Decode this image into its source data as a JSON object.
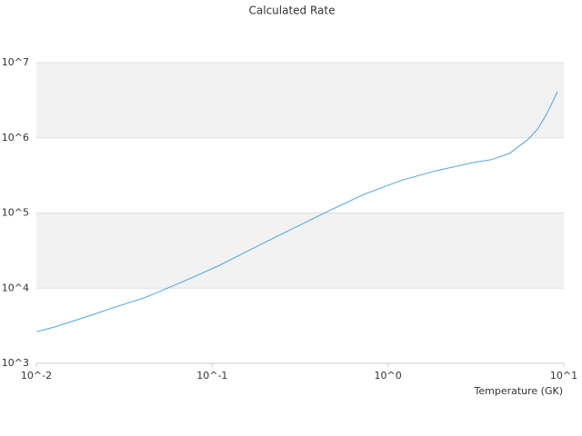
{
  "chart_data": {
    "type": "line",
    "title": "Calculated Rate",
    "x_label": "Temperature (GK)",
    "x": [
      0.01,
      0.0127,
      0.0204,
      0.026,
      0.042,
      0.0675,
      0.109,
      0.175,
      0.282,
      0.455,
      0.733,
      1.18,
      1.9,
      3.07,
      3.9,
      4.94,
      6.28,
      7.08,
      7.98,
      9.2
    ],
    "series": [
      {
        "color": "#4aa3e8",
        "values": [
          2630,
          3040,
          4360,
          5280,
          7590,
          12100,
          19900,
          34900,
          60800,
          105000,
          178000,
          270000,
          368000,
          470000,
          513000,
          627000,
          960000,
          1300000,
          2060000,
          4100000
        ]
      }
    ],
    "xlim": [
      0.01,
      10
    ],
    "ylim": [
      1000,
      10000000
    ],
    "log_x": true,
    "log_y": true,
    "grid": true,
    "band_color": "#f2f2f2",
    "xticks": [
      {
        "value": 0.01,
        "label": "10^-2"
      },
      {
        "value": 0.1,
        "label": "10^-1"
      },
      {
        "value": 1,
        "label": "10^0"
      },
      {
        "value": 10,
        "label": "10^1"
      }
    ],
    "yticks": [
      {
        "value": 1000,
        "label": "10^3"
      },
      {
        "value": 10000,
        "label": "10^4"
      },
      {
        "value": 100000,
        "label": "10^5"
      },
      {
        "value": 1000000,
        "label": "10^6"
      },
      {
        "value": 10000000,
        "label": "10^7"
      }
    ]
  }
}
